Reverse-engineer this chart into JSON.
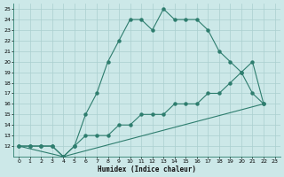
{
  "xlabel": "Humidex (Indice chaleur)",
  "xlim": [
    -0.5,
    23.5
  ],
  "ylim": [
    11,
    25.5
  ],
  "xticks": [
    0,
    1,
    2,
    3,
    4,
    5,
    6,
    7,
    8,
    9,
    10,
    11,
    12,
    13,
    14,
    15,
    16,
    17,
    18,
    19,
    20,
    21,
    22,
    23
  ],
  "yticks": [
    12,
    13,
    14,
    15,
    16,
    17,
    18,
    19,
    20,
    21,
    22,
    23,
    24,
    25
  ],
  "bg_color": "#cce8e8",
  "line_color": "#2e7d6e",
  "grid_color": "#aacfcf",
  "line1_x": [
    0,
    1,
    2,
    3,
    4,
    5,
    6,
    7,
    8,
    9,
    10,
    11,
    12,
    13,
    14,
    15,
    16,
    17,
    18,
    19,
    20,
    21,
    22
  ],
  "line1_y": [
    12,
    12,
    12,
    12,
    11,
    12,
    15,
    17,
    20,
    22,
    24,
    24,
    23,
    25,
    24,
    24,
    24,
    23,
    21,
    20,
    19,
    17,
    16
  ],
  "line2_x": [
    0,
    1,
    2,
    3,
    4,
    5,
    6,
    7,
    8,
    9,
    10,
    11,
    12,
    13,
    14,
    15,
    16,
    17,
    18,
    19,
    20,
    21,
    22
  ],
  "line2_y": [
    12,
    12,
    12,
    12,
    11,
    12,
    13,
    13,
    13,
    14,
    14,
    15,
    15,
    15,
    16,
    16,
    16,
    17,
    17,
    18,
    19,
    20,
    16
  ],
  "line3_x": [
    0,
    4,
    22
  ],
  "line3_y": [
    12,
    11,
    16
  ]
}
